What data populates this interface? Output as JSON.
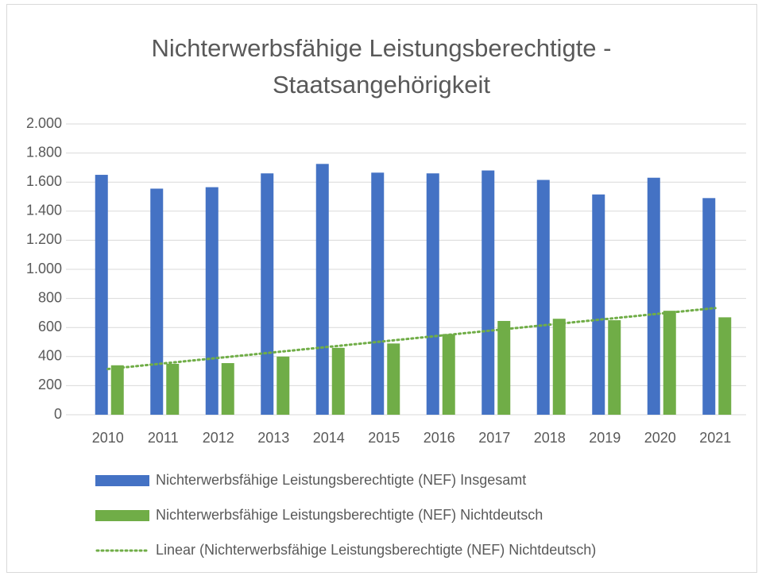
{
  "chart_data": {
    "type": "bar",
    "title": "Nichterwerbsfähige Leistungsberechtigte - Staatsangehörigkeit",
    "categories": [
      "2010",
      "2011",
      "2012",
      "2013",
      "2014",
      "2015",
      "2016",
      "2017",
      "2018",
      "2019",
      "2020",
      "2021"
    ],
    "series": [
      {
        "name": "Nichterwerbsfähige Leistungsberechtigte (NEF) Insgesamt",
        "color": "#4472c4",
        "values": [
          1650,
          1555,
          1565,
          1660,
          1725,
          1665,
          1660,
          1680,
          1615,
          1515,
          1630,
          1490
        ]
      },
      {
        "name": "Nichterwerbsfähige Leistungsberechtigte (NEF) Nichtdeutsch",
        "color": "#70ad47",
        "values": [
          340,
          350,
          355,
          400,
          460,
          490,
          555,
          645,
          660,
          650,
          715,
          670
        ]
      }
    ],
    "trendline": {
      "name": "Linear (Nichterwerbsfähige Leistungsberechtigte (NEF) Nichtdeutsch)",
      "series": 1,
      "color": "#70ad47"
    },
    "ylim": [
      0,
      2000
    ],
    "yticks": [
      0,
      200,
      400,
      600,
      800,
      {
        "value": 1000,
        "label": "1.000"
      },
      {
        "value": 1200,
        "label": "1.200"
      },
      {
        "value": 1400,
        "label": "1.400"
      },
      {
        "value": 1600,
        "label": "1.600"
      },
      {
        "value": 1800,
        "label": "1.800"
      },
      {
        "value": 2000,
        "label": "2.000"
      }
    ],
    "grid": true
  }
}
